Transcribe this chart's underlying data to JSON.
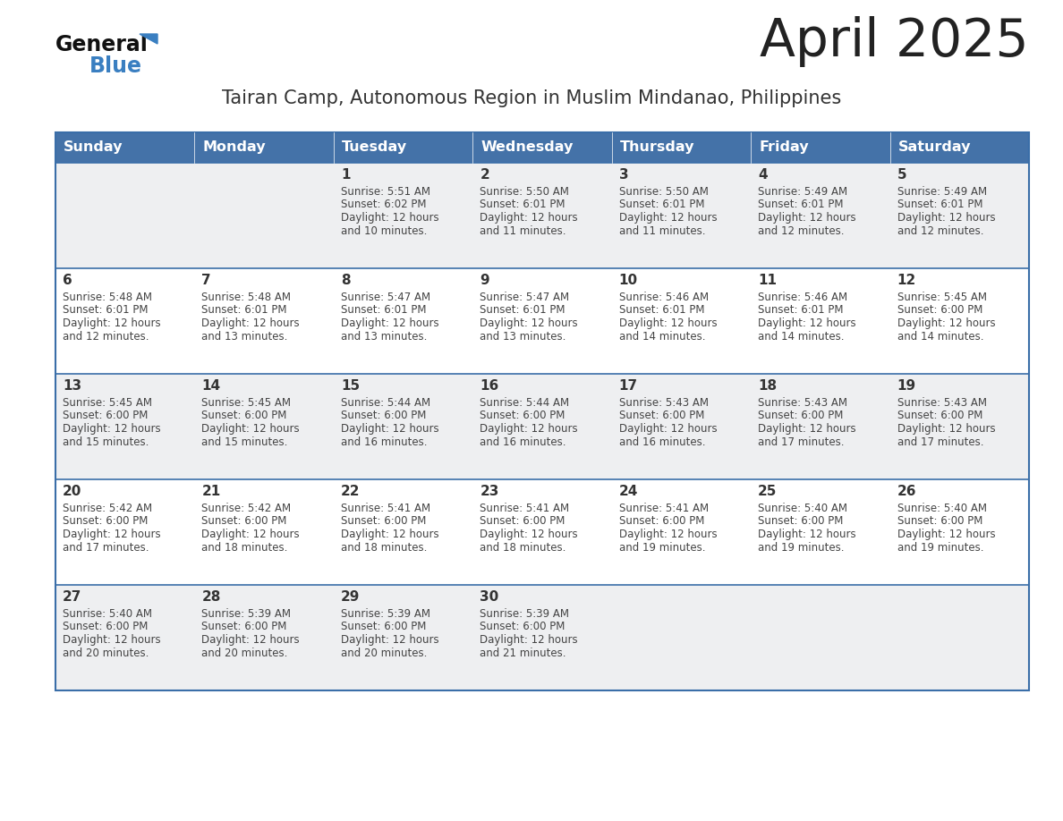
{
  "title": "April 2025",
  "subtitle": "Tairan Camp, Autonomous Region in Muslim Mindanao, Philippines",
  "header_bg_color": "#4472a8",
  "header_text_color": "#ffffff",
  "cell_bg_even": "#eeeff1",
  "cell_bg_odd": "#ffffff",
  "day_headers": [
    "Sunday",
    "Monday",
    "Tuesday",
    "Wednesday",
    "Thursday",
    "Friday",
    "Saturday"
  ],
  "title_color": "#222222",
  "subtitle_color": "#333333",
  "day_number_color": "#333333",
  "cell_text_color": "#444444",
  "grid_line_color": "#3a6ea8",
  "fig_width": 11.88,
  "fig_height": 9.18,
  "dpi": 100,
  "calendar": [
    [
      {
        "day": null,
        "sunrise": null,
        "sunset": null,
        "daylight": null
      },
      {
        "day": null,
        "sunrise": null,
        "sunset": null,
        "daylight": null
      },
      {
        "day": 1,
        "sunrise": "5:51 AM",
        "sunset": "6:02 PM",
        "daylight": "12 hours\nand 10 minutes."
      },
      {
        "day": 2,
        "sunrise": "5:50 AM",
        "sunset": "6:01 PM",
        "daylight": "12 hours\nand 11 minutes."
      },
      {
        "day": 3,
        "sunrise": "5:50 AM",
        "sunset": "6:01 PM",
        "daylight": "12 hours\nand 11 minutes."
      },
      {
        "day": 4,
        "sunrise": "5:49 AM",
        "sunset": "6:01 PM",
        "daylight": "12 hours\nand 12 minutes."
      },
      {
        "day": 5,
        "sunrise": "5:49 AM",
        "sunset": "6:01 PM",
        "daylight": "12 hours\nand 12 minutes."
      }
    ],
    [
      {
        "day": 6,
        "sunrise": "5:48 AM",
        "sunset": "6:01 PM",
        "daylight": "12 hours\nand 12 minutes."
      },
      {
        "day": 7,
        "sunrise": "5:48 AM",
        "sunset": "6:01 PM",
        "daylight": "12 hours\nand 13 minutes."
      },
      {
        "day": 8,
        "sunrise": "5:47 AM",
        "sunset": "6:01 PM",
        "daylight": "12 hours\nand 13 minutes."
      },
      {
        "day": 9,
        "sunrise": "5:47 AM",
        "sunset": "6:01 PM",
        "daylight": "12 hours\nand 13 minutes."
      },
      {
        "day": 10,
        "sunrise": "5:46 AM",
        "sunset": "6:01 PM",
        "daylight": "12 hours\nand 14 minutes."
      },
      {
        "day": 11,
        "sunrise": "5:46 AM",
        "sunset": "6:01 PM",
        "daylight": "12 hours\nand 14 minutes."
      },
      {
        "day": 12,
        "sunrise": "5:45 AM",
        "sunset": "6:00 PM",
        "daylight": "12 hours\nand 14 minutes."
      }
    ],
    [
      {
        "day": 13,
        "sunrise": "5:45 AM",
        "sunset": "6:00 PM",
        "daylight": "12 hours\nand 15 minutes."
      },
      {
        "day": 14,
        "sunrise": "5:45 AM",
        "sunset": "6:00 PM",
        "daylight": "12 hours\nand 15 minutes."
      },
      {
        "day": 15,
        "sunrise": "5:44 AM",
        "sunset": "6:00 PM",
        "daylight": "12 hours\nand 16 minutes."
      },
      {
        "day": 16,
        "sunrise": "5:44 AM",
        "sunset": "6:00 PM",
        "daylight": "12 hours\nand 16 minutes."
      },
      {
        "day": 17,
        "sunrise": "5:43 AM",
        "sunset": "6:00 PM",
        "daylight": "12 hours\nand 16 minutes."
      },
      {
        "day": 18,
        "sunrise": "5:43 AM",
        "sunset": "6:00 PM",
        "daylight": "12 hours\nand 17 minutes."
      },
      {
        "day": 19,
        "sunrise": "5:43 AM",
        "sunset": "6:00 PM",
        "daylight": "12 hours\nand 17 minutes."
      }
    ],
    [
      {
        "day": 20,
        "sunrise": "5:42 AM",
        "sunset": "6:00 PM",
        "daylight": "12 hours\nand 17 minutes."
      },
      {
        "day": 21,
        "sunrise": "5:42 AM",
        "sunset": "6:00 PM",
        "daylight": "12 hours\nand 18 minutes."
      },
      {
        "day": 22,
        "sunrise": "5:41 AM",
        "sunset": "6:00 PM",
        "daylight": "12 hours\nand 18 minutes."
      },
      {
        "day": 23,
        "sunrise": "5:41 AM",
        "sunset": "6:00 PM",
        "daylight": "12 hours\nand 18 minutes."
      },
      {
        "day": 24,
        "sunrise": "5:41 AM",
        "sunset": "6:00 PM",
        "daylight": "12 hours\nand 19 minutes."
      },
      {
        "day": 25,
        "sunrise": "5:40 AM",
        "sunset": "6:00 PM",
        "daylight": "12 hours\nand 19 minutes."
      },
      {
        "day": 26,
        "sunrise": "5:40 AM",
        "sunset": "6:00 PM",
        "daylight": "12 hours\nand 19 minutes."
      }
    ],
    [
      {
        "day": 27,
        "sunrise": "5:40 AM",
        "sunset": "6:00 PM",
        "daylight": "12 hours\nand 20 minutes."
      },
      {
        "day": 28,
        "sunrise": "5:39 AM",
        "sunset": "6:00 PM",
        "daylight": "12 hours\nand 20 minutes."
      },
      {
        "day": 29,
        "sunrise": "5:39 AM",
        "sunset": "6:00 PM",
        "daylight": "12 hours\nand 20 minutes."
      },
      {
        "day": 30,
        "sunrise": "5:39 AM",
        "sunset": "6:00 PM",
        "daylight": "12 hours\nand 21 minutes."
      },
      {
        "day": null,
        "sunrise": null,
        "sunset": null,
        "daylight": null
      },
      {
        "day": null,
        "sunrise": null,
        "sunset": null,
        "daylight": null
      },
      {
        "day": null,
        "sunrise": null,
        "sunset": null,
        "daylight": null
      }
    ]
  ]
}
